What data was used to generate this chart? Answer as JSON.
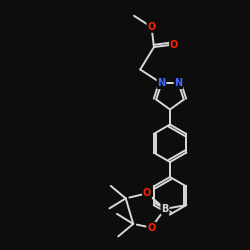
{
  "bg_color": "#0d0d0d",
  "bond_color": "#d8d8d8",
  "atom_colors": {
    "N": "#4466ff",
    "O": "#ff2200",
    "B": "#d8d8d8"
  },
  "bond_width": 1.4,
  "font_size": 7.0,
  "figsize": [
    2.5,
    2.5
  ],
  "dpi": 100
}
